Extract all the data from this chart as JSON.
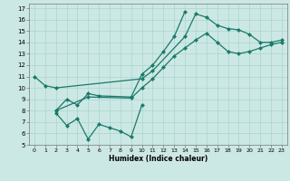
{
  "xlabel": "Humidex (Indice chaleur)",
  "bg_color": "#cce8e4",
  "grid_color": "#aad4ce",
  "line_color": "#1a7a6a",
  "xlim": [
    -0.5,
    23.5
  ],
  "ylim": [
    5,
    17.4
  ],
  "xticks": [
    0,
    1,
    2,
    3,
    4,
    5,
    6,
    7,
    8,
    9,
    10,
    11,
    12,
    13,
    14,
    15,
    16,
    17,
    18,
    19,
    20,
    21,
    22,
    23
  ],
  "yticks": [
    5,
    6,
    7,
    8,
    9,
    10,
    11,
    12,
    13,
    14,
    15,
    16,
    17
  ],
  "line1_x": [
    0,
    1,
    2,
    10,
    11,
    14,
    15,
    16,
    17,
    18,
    19,
    20,
    21,
    22,
    23
  ],
  "line1_y": [
    11.0,
    10.2,
    10.0,
    10.8,
    11.5,
    14.5,
    16.5,
    16.2,
    15.5,
    15.2,
    15.1,
    14.7,
    14.0,
    14.0,
    14.2
  ],
  "line2_x": [
    2,
    3,
    4,
    5,
    6,
    7,
    8,
    9,
    10
  ],
  "line2_y": [
    7.8,
    6.7,
    7.3,
    5.5,
    6.8,
    6.5,
    6.2,
    5.7,
    8.5
  ],
  "line3_x": [
    2,
    3,
    4,
    5,
    6,
    9,
    10,
    11,
    12,
    13,
    14
  ],
  "line3_y": [
    8.0,
    9.0,
    8.5,
    9.5,
    9.3,
    9.2,
    11.2,
    12.0,
    13.2,
    14.5,
    16.7
  ],
  "line4_x": [
    2,
    5,
    9,
    10,
    11,
    12,
    13,
    14,
    15,
    16,
    17,
    18,
    19,
    20,
    21,
    22,
    23
  ],
  "line4_y": [
    8.0,
    9.2,
    9.1,
    10.0,
    10.8,
    11.8,
    12.8,
    13.5,
    14.2,
    14.8,
    14.0,
    13.2,
    13.0,
    13.2,
    13.5,
    13.8,
    14.0
  ]
}
